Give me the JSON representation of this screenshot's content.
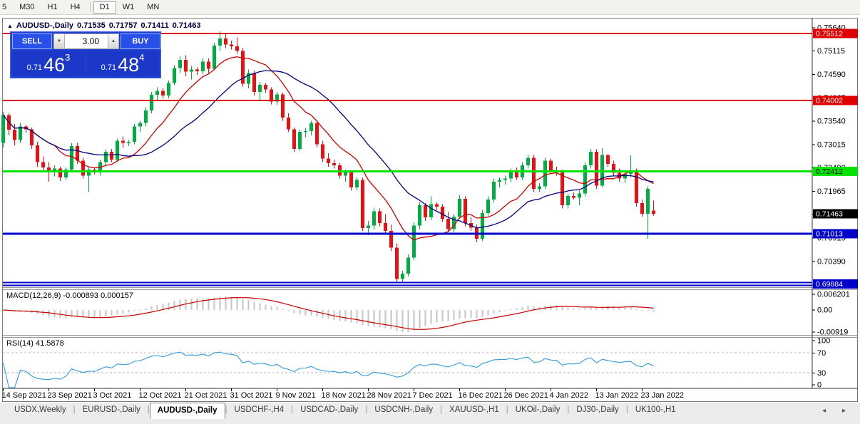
{
  "toolbar": {
    "timeframes": [
      "5",
      "M30",
      "H1",
      "H4",
      "D1",
      "W1",
      "MN"
    ],
    "active": "D1"
  },
  "info_line": {
    "symbol": "AUDUSD-,Daily",
    "open": "0.71535",
    "high": "0.71757",
    "low": "0.71411",
    "close": "0.71463"
  },
  "order_panel": {
    "sell_label": "SELL",
    "buy_label": "BUY",
    "volume": "3.00",
    "sell_price": {
      "prefix": "0.71",
      "big": "46",
      "sup": "3"
    },
    "buy_price": {
      "prefix": "0.71",
      "big": "48",
      "sup": "4"
    }
  },
  "chart_data": {
    "type": "candlestick",
    "symbol": "AUDUSD-",
    "timeframe": "Daily",
    "colors": {
      "bull": "#00AD40",
      "bear": "#E81010",
      "ma_fast": "#CC0000",
      "ma_slow": "#000080",
      "macd_hist": "#C4C4C4",
      "macd_signal": "#C80000",
      "rsi_line": "#2E9BDE"
    },
    "price_axis_ticks": [
      "0.75640",
      "0.75115",
      "0.74590",
      "0.74065",
      "0.73540",
      "0.73015",
      "0.72490",
      "0.71965",
      "0.71440",
      "0.70915",
      "0.70390",
      "0.69865"
    ],
    "badges": [
      {
        "value": "0.75512",
        "price": 0.75512,
        "bg": "#E00000",
        "fg": "#ffffff"
      },
      {
        "value": "0.74002",
        "price": 0.74002,
        "bg": "#E00000",
        "fg": "#ffffff"
      },
      {
        "value": "0.72412",
        "price": 0.72412,
        "bg": "#00E400",
        "fg": "#000000"
      },
      {
        "value": "0.71463",
        "price": 0.71463,
        "bg": "#000000",
        "fg": "#ffffff"
      },
      {
        "value": "0.71013",
        "price": 0.71013,
        "bg": "#0000CD",
        "fg": "#ffffff"
      },
      {
        "value": "0.69884",
        "price": 0.69884,
        "bg": "#0000CD",
        "fg": "#ffffff"
      }
    ],
    "hlines": [
      {
        "price": 0.75512,
        "color": "#E00000",
        "width": 2,
        "double": false
      },
      {
        "price": 0.74002,
        "color": "#E00000",
        "width": 2,
        "double": false
      },
      {
        "price": 0.72412,
        "color": "#00E400",
        "width": 3,
        "double": false
      },
      {
        "price": 0.71013,
        "color": "#0000CD",
        "width": 3,
        "double": false
      },
      {
        "price": 0.69884,
        "color": "#0000CD",
        "width": 2,
        "double": true
      }
    ],
    "date_labels": [
      "14 Sep 2021",
      "23 Sep 2021",
      "3 Oct 2021",
      "12 Oct 2021",
      "21 Oct 2021",
      "31 Oct 2021",
      "9 Nov 2021",
      "18 Nov 2021",
      "28 Nov 2021",
      "7 Dec 2021",
      "16 Dec 2021",
      "26 Dec 2021",
      "4 Jan 2022",
      "13 Jan 2022",
      "23 Jan 2022"
    ],
    "candles_per_label": 8,
    "ma_fast_period": 10,
    "ma_slow_period": 21,
    "macd": {
      "name": "MACD(12,26,9)",
      "value_main": "-0.000893",
      "value_signal": "0.000157",
      "axis_labels": [
        "0.006201",
        "0.00",
        "-0.00919"
      ],
      "fast": 12,
      "slow": 26,
      "signal": 9
    },
    "rsi": {
      "name": "RSI(14)",
      "value": "41.5878",
      "axis_labels": [
        "100",
        "70",
        "30",
        "0"
      ],
      "levels": [
        70,
        30
      ],
      "period": 14
    },
    "candles": [
      [
        0.7305,
        0.7375,
        0.7295,
        0.7368
      ],
      [
        0.7368,
        0.7372,
        0.7322,
        0.7335
      ],
      [
        0.7335,
        0.7348,
        0.73,
        0.7312
      ],
      [
        0.7312,
        0.735,
        0.7305,
        0.7342
      ],
      [
        0.7342,
        0.7346,
        0.7328,
        0.7336
      ],
      [
        0.7336,
        0.734,
        0.7292,
        0.73
      ],
      [
        0.73,
        0.7308,
        0.7252,
        0.7262
      ],
      [
        0.7262,
        0.7275,
        0.724,
        0.725
      ],
      [
        0.725,
        0.7262,
        0.7218,
        0.7242
      ],
      [
        0.7242,
        0.7255,
        0.723,
        0.7248
      ],
      [
        0.7248,
        0.7252,
        0.722,
        0.7228
      ],
      [
        0.7228,
        0.725,
        0.7222,
        0.7245
      ],
      [
        0.7245,
        0.7305,
        0.724,
        0.7298
      ],
      [
        0.7298,
        0.7305,
        0.7258,
        0.7265
      ],
      [
        0.7265,
        0.7272,
        0.7225,
        0.7232
      ],
      [
        0.7232,
        0.7252,
        0.7195,
        0.7245
      ],
      [
        0.7245,
        0.725,
        0.7235,
        0.724
      ],
      [
        0.724,
        0.7268,
        0.7232,
        0.7262
      ],
      [
        0.7262,
        0.729,
        0.7255,
        0.7285
      ],
      [
        0.7285,
        0.7292,
        0.7262,
        0.7268
      ],
      [
        0.7268,
        0.7315,
        0.7262,
        0.731
      ],
      [
        0.731,
        0.732,
        0.7295,
        0.7305
      ],
      [
        0.7305,
        0.7312,
        0.7298,
        0.7308
      ],
      [
        0.7308,
        0.7348,
        0.7302,
        0.7342
      ],
      [
        0.7342,
        0.7355,
        0.733,
        0.735
      ],
      [
        0.735,
        0.7385,
        0.7342,
        0.7378
      ],
      [
        0.7378,
        0.742,
        0.7372,
        0.7413
      ],
      [
        0.7413,
        0.743,
        0.74,
        0.7422
      ],
      [
        0.7422,
        0.7428,
        0.7405,
        0.7412
      ],
      [
        0.7412,
        0.7445,
        0.7405,
        0.744
      ],
      [
        0.744,
        0.748,
        0.7435,
        0.7473
      ],
      [
        0.7473,
        0.75,
        0.7462,
        0.7492
      ],
      [
        0.7492,
        0.7502,
        0.7455,
        0.7465
      ],
      [
        0.7465,
        0.7478,
        0.7448,
        0.747
      ],
      [
        0.747,
        0.7475,
        0.7458,
        0.7466
      ],
      [
        0.7466,
        0.7495,
        0.746,
        0.7488
      ],
      [
        0.7488,
        0.7495,
        0.7462,
        0.7472
      ],
      [
        0.7472,
        0.753,
        0.7468,
        0.7524
      ],
      [
        0.7524,
        0.7556,
        0.7512,
        0.754
      ],
      [
        0.754,
        0.7552,
        0.7518,
        0.7526
      ],
      [
        0.7526,
        0.7535,
        0.7515,
        0.7522
      ],
      [
        0.7522,
        0.7542,
        0.7505,
        0.7512
      ],
      [
        0.7512,
        0.7518,
        0.7432,
        0.7438
      ],
      [
        0.7438,
        0.747,
        0.7428,
        0.7462
      ],
      [
        0.7462,
        0.7468,
        0.7412,
        0.742
      ],
      [
        0.742,
        0.7442,
        0.74,
        0.7436
      ],
      [
        0.7436,
        0.744,
        0.7418,
        0.7425
      ],
      [
        0.7425,
        0.743,
        0.7392,
        0.7398
      ],
      [
        0.7398,
        0.742,
        0.739,
        0.7414
      ],
      [
        0.7414,
        0.7418,
        0.7355,
        0.7362
      ],
      [
        0.7362,
        0.7372,
        0.733,
        0.7336
      ],
      [
        0.7336,
        0.734,
        0.7285,
        0.7292
      ],
      [
        0.7292,
        0.7335,
        0.7288,
        0.733
      ],
      [
        0.733,
        0.7338,
        0.7318,
        0.7332
      ],
      [
        0.7332,
        0.7355,
        0.7322,
        0.735
      ],
      [
        0.735,
        0.7352,
        0.7295,
        0.7302
      ],
      [
        0.7302,
        0.731,
        0.7262,
        0.727
      ],
      [
        0.727,
        0.7282,
        0.7252,
        0.726
      ],
      [
        0.726,
        0.7268,
        0.7248,
        0.7255
      ],
      [
        0.7255,
        0.726,
        0.7225,
        0.7232
      ],
      [
        0.7232,
        0.7245,
        0.7218,
        0.724
      ],
      [
        0.724,
        0.7242,
        0.7198,
        0.7205
      ],
      [
        0.7205,
        0.7228,
        0.7198,
        0.7222
      ],
      [
        0.7222,
        0.7228,
        0.7108,
        0.7114
      ],
      [
        0.7114,
        0.713,
        0.7098,
        0.712
      ],
      [
        0.712,
        0.716,
        0.711,
        0.7152
      ],
      [
        0.7152,
        0.7158,
        0.7118,
        0.7125
      ],
      [
        0.7125,
        0.7145,
        0.71,
        0.7108
      ],
      [
        0.7108,
        0.7122,
        0.7062,
        0.707
      ],
      [
        0.707,
        0.708,
        0.6993,
        0.7
      ],
      [
        0.7,
        0.7018,
        0.699,
        0.7012
      ],
      [
        0.7012,
        0.7055,
        0.7005,
        0.7048
      ],
      [
        0.7048,
        0.7128,
        0.7042,
        0.712
      ],
      [
        0.712,
        0.7172,
        0.7112,
        0.7165
      ],
      [
        0.7165,
        0.717,
        0.713,
        0.7138
      ],
      [
        0.7138,
        0.7185,
        0.7132,
        0.7168
      ],
      [
        0.7168,
        0.7172,
        0.7155,
        0.7162
      ],
      [
        0.7162,
        0.7168,
        0.7128,
        0.7135
      ],
      [
        0.7135,
        0.715,
        0.7105,
        0.7112
      ],
      [
        0.7112,
        0.7145,
        0.7105,
        0.714
      ],
      [
        0.714,
        0.7188,
        0.7135,
        0.718
      ],
      [
        0.718,
        0.7185,
        0.7118,
        0.7125
      ],
      [
        0.7125,
        0.7138,
        0.7108,
        0.7115
      ],
      [
        0.7115,
        0.7122,
        0.7082,
        0.709
      ],
      [
        0.709,
        0.7155,
        0.7085,
        0.7148
      ],
      [
        0.7148,
        0.7185,
        0.7142,
        0.7178
      ],
      [
        0.7178,
        0.7225,
        0.7172,
        0.7218
      ],
      [
        0.7218,
        0.7228,
        0.7205,
        0.7222
      ],
      [
        0.7222,
        0.7232,
        0.7212,
        0.7225
      ],
      [
        0.7225,
        0.7248,
        0.7218,
        0.7242
      ],
      [
        0.7242,
        0.725,
        0.7222,
        0.7228
      ],
      [
        0.7228,
        0.7262,
        0.7222,
        0.7255
      ],
      [
        0.7255,
        0.7278,
        0.7248,
        0.7272
      ],
      [
        0.7272,
        0.7278,
        0.7195,
        0.7202
      ],
      [
        0.7202,
        0.7215,
        0.7195,
        0.7208
      ],
      [
        0.7208,
        0.7272,
        0.7202,
        0.7265
      ],
      [
        0.7265,
        0.727,
        0.7238,
        0.7244
      ],
      [
        0.7244,
        0.7252,
        0.7232,
        0.724
      ],
      [
        0.724,
        0.7245,
        0.7158,
        0.7165
      ],
      [
        0.7165,
        0.7192,
        0.7158,
        0.7186
      ],
      [
        0.7186,
        0.7194,
        0.7178,
        0.7182
      ],
      [
        0.7182,
        0.7198,
        0.7165,
        0.7192
      ],
      [
        0.7192,
        0.7262,
        0.7185,
        0.7255
      ],
      [
        0.7255,
        0.7292,
        0.7248,
        0.7285
      ],
      [
        0.7285,
        0.7291,
        0.7202,
        0.7209
      ],
      [
        0.7209,
        0.7293,
        0.7205,
        0.7278
      ],
      [
        0.7278,
        0.728,
        0.7252,
        0.7258
      ],
      [
        0.7258,
        0.7265,
        0.7232,
        0.7238
      ],
      [
        0.7238,
        0.7248,
        0.7218,
        0.7225
      ],
      [
        0.7225,
        0.7242,
        0.7215,
        0.7236
      ],
      [
        0.7236,
        0.7277,
        0.7228,
        0.7242
      ],
      [
        0.7242,
        0.7248,
        0.7162,
        0.717
      ],
      [
        0.717,
        0.7178,
        0.714,
        0.7146
      ],
      [
        0.7146,
        0.7208,
        0.709,
        0.7202
      ],
      [
        0.71535,
        0.71757,
        0.71411,
        0.71463
      ]
    ]
  },
  "tabs": {
    "items": [
      "USDX,Weekly",
      "EURUSD-,Daily",
      "AUDUSD-,Daily",
      "USDCHF-,H4",
      "USDCAD-,Daily",
      "USDCNH-,Daily",
      "XAUUSD-,H1",
      "UKOil-,Daily",
      "DJ30-,Daily",
      "UK100-,H1"
    ],
    "active_index": 2,
    "scroll_left": "◂",
    "scroll_right": "▸"
  }
}
